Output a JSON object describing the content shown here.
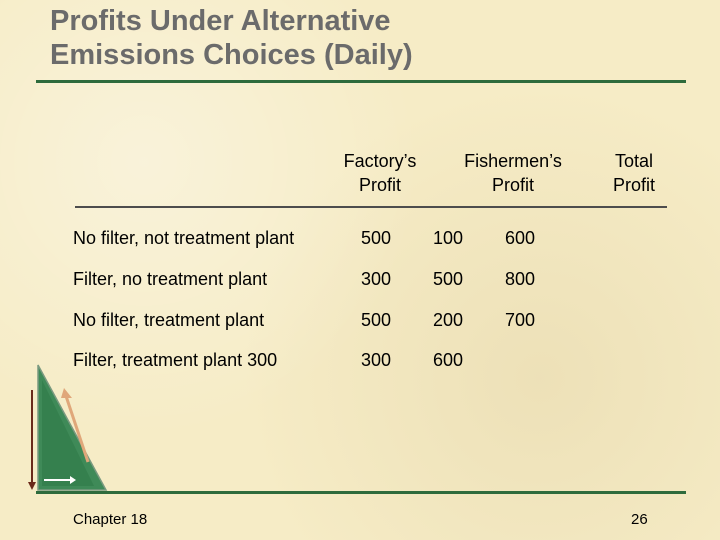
{
  "slide": {
    "title_line1": "Profits Under Alternative",
    "title_line2": "Emissions Choices (Daily)"
  },
  "table": {
    "headers": [
      {
        "line1": "Factory’s",
        "line2": "Profit"
      },
      {
        "line1": "Fishermen’s",
        "line2": "Profit"
      },
      {
        "line1": "Total",
        "line2": "Profit"
      }
    ],
    "rows": [
      {
        "label": "No filter, not treatment plant",
        "v1": "500",
        "v2": "100",
        "v3": "600"
      },
      {
        "label": "Filter, no treatment plant",
        "v1": "300",
        "v2": "500",
        "v3": "800"
      },
      {
        "label": "No filter, treatment plant",
        "v1": "500",
        "v2": "200",
        "v3": "700"
      },
      {
        "label": "Filter, treatment plant 300",
        "v1": "300",
        "v2": "600",
        "v3": ""
      }
    ]
  },
  "footer": {
    "chapter": "Chapter 18",
    "page_number": "26"
  },
  "colors": {
    "title": "#6b6b6b",
    "rule": "#2e6b3c",
    "background": "#f6ecc6"
  }
}
